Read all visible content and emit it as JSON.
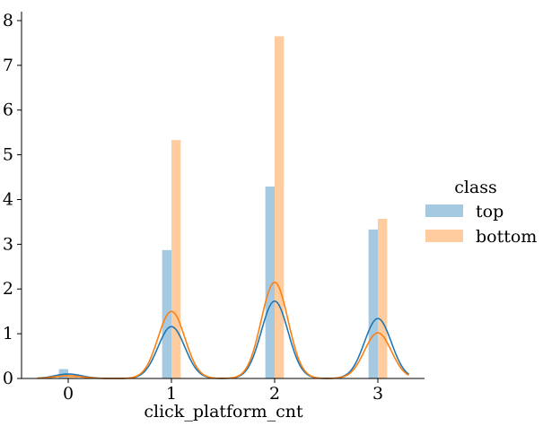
{
  "chart_data": {
    "type": "bar",
    "xlabel": "click_platform_cnt",
    "ylabel": "",
    "xlim": [
      -0.3,
      3.45
    ],
    "ylim": [
      0,
      8.2
    ],
    "xticks": [
      "0",
      "1",
      "2",
      "3"
    ],
    "yticks": [
      "0",
      "1",
      "2",
      "3",
      "4",
      "5",
      "6",
      "7",
      "8"
    ],
    "legend": {
      "title": "class",
      "placement": "right",
      "entries": [
        "top",
        "bottom"
      ]
    },
    "series": [
      {
        "name": "top",
        "color": "#1f77b4",
        "hist": [
          {
            "x": 0,
            "y": 0.21
          },
          {
            "x": 1,
            "y": 2.87
          },
          {
            "x": 2,
            "y": 4.29
          },
          {
            "x": 3,
            "y": 3.33
          }
        ],
        "kde_peaks": [
          {
            "x": 0,
            "y": 0.1
          },
          {
            "x": 1,
            "y": 1.16
          },
          {
            "x": 2,
            "y": 1.73
          },
          {
            "x": 3,
            "y": 1.34
          }
        ]
      },
      {
        "name": "bottom",
        "color": "#ff7f0e",
        "hist": [
          {
            "x": 0,
            "y": 0.05
          },
          {
            "x": 1,
            "y": 5.33
          },
          {
            "x": 2,
            "y": 7.65
          },
          {
            "x": 3,
            "y": 3.57
          }
        ],
        "kde_peaks": [
          {
            "x": 0,
            "y": 0.06
          },
          {
            "x": 1,
            "y": 1.5
          },
          {
            "x": 2,
            "y": 2.15
          },
          {
            "x": 3,
            "y": 1.02
          }
        ]
      }
    ],
    "bar_width": 0.09,
    "bar_offset": 0.045,
    "kde_sigma": 0.13,
    "kde_range": [
      -0.3,
      3.3
    ]
  }
}
